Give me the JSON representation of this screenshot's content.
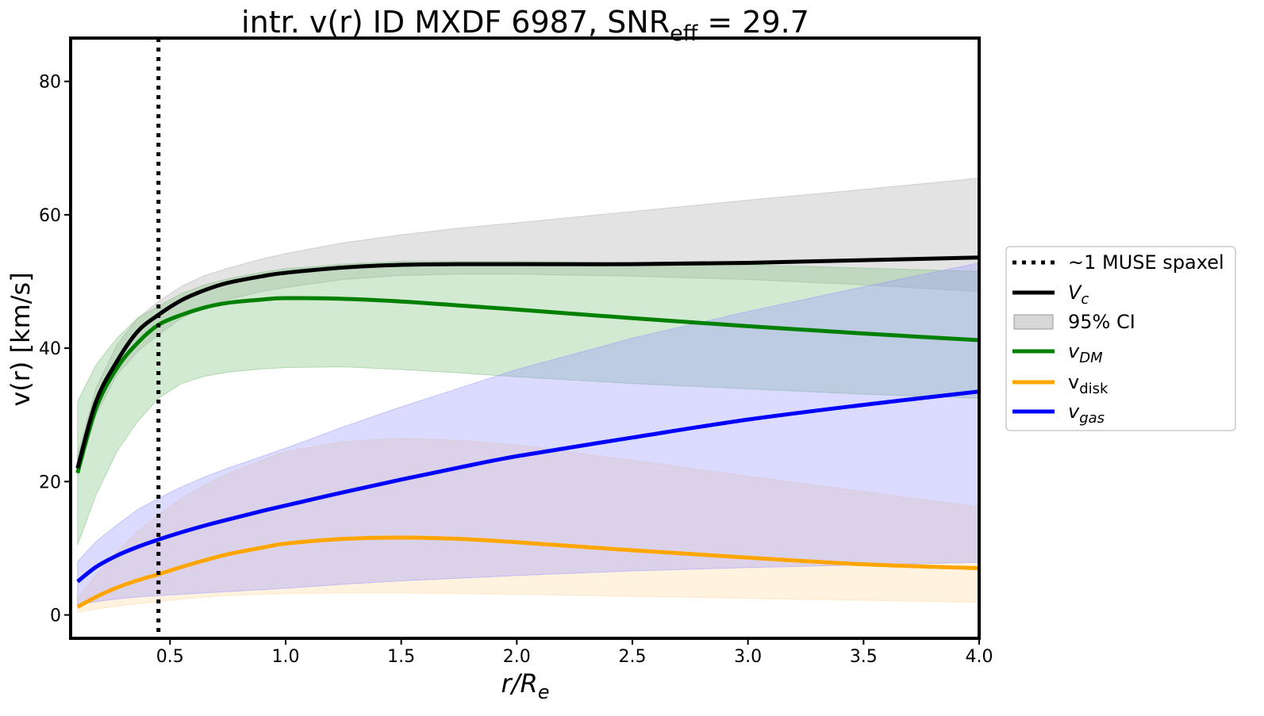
{
  "chart_data": {
    "type": "line",
    "title": "intr. v(r) ID MXDF 6987, SNR",
    "title_sub": "eff",
    "title_tail": " = 29.7",
    "xlabel": "r/R",
    "xlabel_sub": "e",
    "ylabel": "v(r) [km/s]",
    "xlim": [
      0.07,
      4.0
    ],
    "ylim": [
      -3.5,
      86.5
    ],
    "xticks": [
      0.5,
      1.0,
      1.5,
      2.0,
      2.5,
      3.0,
      3.5,
      4.0
    ],
    "xtick_labels": [
      "0.5",
      "1.0",
      "1.5",
      "2.0",
      "2.5",
      "3.0",
      "3.5",
      "4.0"
    ],
    "yticks": [
      0,
      20,
      40,
      60,
      80
    ],
    "ytick_labels": [
      "0",
      "20",
      "40",
      "60",
      "80"
    ],
    "vline": {
      "x": 0.45,
      "label": "~1 MUSE spaxel",
      "style": "dotted",
      "color": "#000000"
    },
    "grid": false,
    "legend_position": "outside-right",
    "x": [
      0.1,
      0.18,
      0.27,
      0.36,
      0.45,
      0.55,
      0.65,
      0.75,
      0.9,
      1.0,
      1.25,
      1.5,
      1.75,
      2.0,
      2.5,
      3.0,
      3.5,
      4.0
    ],
    "series": [
      {
        "name": "V",
        "name_sub": "c",
        "name_style": "italic",
        "color": "#000000",
        "values": [
          22,
          32,
          38,
          42.5,
          45,
          47.2,
          48.7,
          49.8,
          50.8,
          51.3,
          52.1,
          52.5,
          52.6,
          52.6,
          52.6,
          52.8,
          53.2,
          53.6
        ],
        "band_label": "95% CI",
        "band_color": "#b0b0b0",
        "band_lower": [
          21,
          30,
          36,
          39.5,
          42,
          44.5,
          46.2,
          47.3,
          48.5,
          49.1,
          50.3,
          50.9,
          51.1,
          51.1,
          50.8,
          50.3,
          49.5,
          48.5
        ],
        "band_upper": [
          24,
          34,
          40.5,
          44.5,
          47,
          49.3,
          50.9,
          52,
          53.4,
          54.2,
          55.8,
          57,
          58,
          58.8,
          60.5,
          62.2,
          63.8,
          65.5
        ]
      },
      {
        "name": "v",
        "name_sub": "DM",
        "name_style": "italic",
        "color": "#008000",
        "values": [
          21.3,
          31,
          37,
          40.8,
          43.5,
          45,
          46.1,
          46.8,
          47.3,
          47.5,
          47.4,
          47,
          46.4,
          45.8,
          44.5,
          43.3,
          42.2,
          41.2
        ],
        "band_color": "#7fbf7f",
        "band_lower": [
          10.5,
          18,
          24.5,
          29,
          32.5,
          34.7,
          35.8,
          36.4,
          36.9,
          37.1,
          37.2,
          36.8,
          36.3,
          35.7,
          34.7,
          33.9,
          33.1,
          32.5
        ],
        "band_upper": [
          32,
          37.5,
          41.5,
          44.5,
          46.3,
          48.2,
          49.5,
          50.4,
          51.4,
          51.9,
          52.6,
          53,
          53,
          53,
          52.8,
          52.5,
          52,
          51.5
        ]
      },
      {
        "name": "v",
        "name_sub": "disk",
        "name_style": "normal",
        "color": "#ffa500",
        "values": [
          1.2,
          2.7,
          4.1,
          5.2,
          6.1,
          7.2,
          8.2,
          9.1,
          10.1,
          10.7,
          11.4,
          11.6,
          11.4,
          10.9,
          9.7,
          8.6,
          7.6,
          7.0
        ],
        "band_color": "#ffd9a0",
        "band_lower": [
          0.4,
          0.9,
          1.3,
          1.7,
          2.0,
          2.4,
          2.7,
          2.9,
          3.1,
          3.2,
          3.3,
          3.3,
          3.2,
          3.1,
          2.8,
          2.5,
          2.2,
          1.9
        ],
        "band_upper": [
          2.5,
          6,
          9.5,
          12.5,
          15,
          17.5,
          19.5,
          21.2,
          23.2,
          24.5,
          26,
          26.5,
          26.2,
          25.5,
          23.2,
          20.8,
          18.5,
          16.2
        ]
      },
      {
        "name": "v",
        "name_sub": "gas",
        "name_style": "italic",
        "color": "#0000ff",
        "values": [
          5,
          7.2,
          8.9,
          10.2,
          11.3,
          12.4,
          13.4,
          14.3,
          15.6,
          16.4,
          18.4,
          20.3,
          22.1,
          23.8,
          26.6,
          29.3,
          31.5,
          33.5
        ],
        "band_color": "#9999ff",
        "band_lower": [
          1.5,
          2,
          2.4,
          2.7,
          2.9,
          3.1,
          3.3,
          3.5,
          3.8,
          4,
          4.6,
          5.1,
          5.5,
          5.9,
          6.6,
          7.1,
          7.5,
          7.9
        ],
        "band_upper": [
          8,
          11,
          13.5,
          15.8,
          17.5,
          19.2,
          20.7,
          22,
          23.8,
          25,
          28.2,
          31.2,
          34,
          36.8,
          41.5,
          45.5,
          49.2,
          52.8
        ]
      }
    ]
  }
}
